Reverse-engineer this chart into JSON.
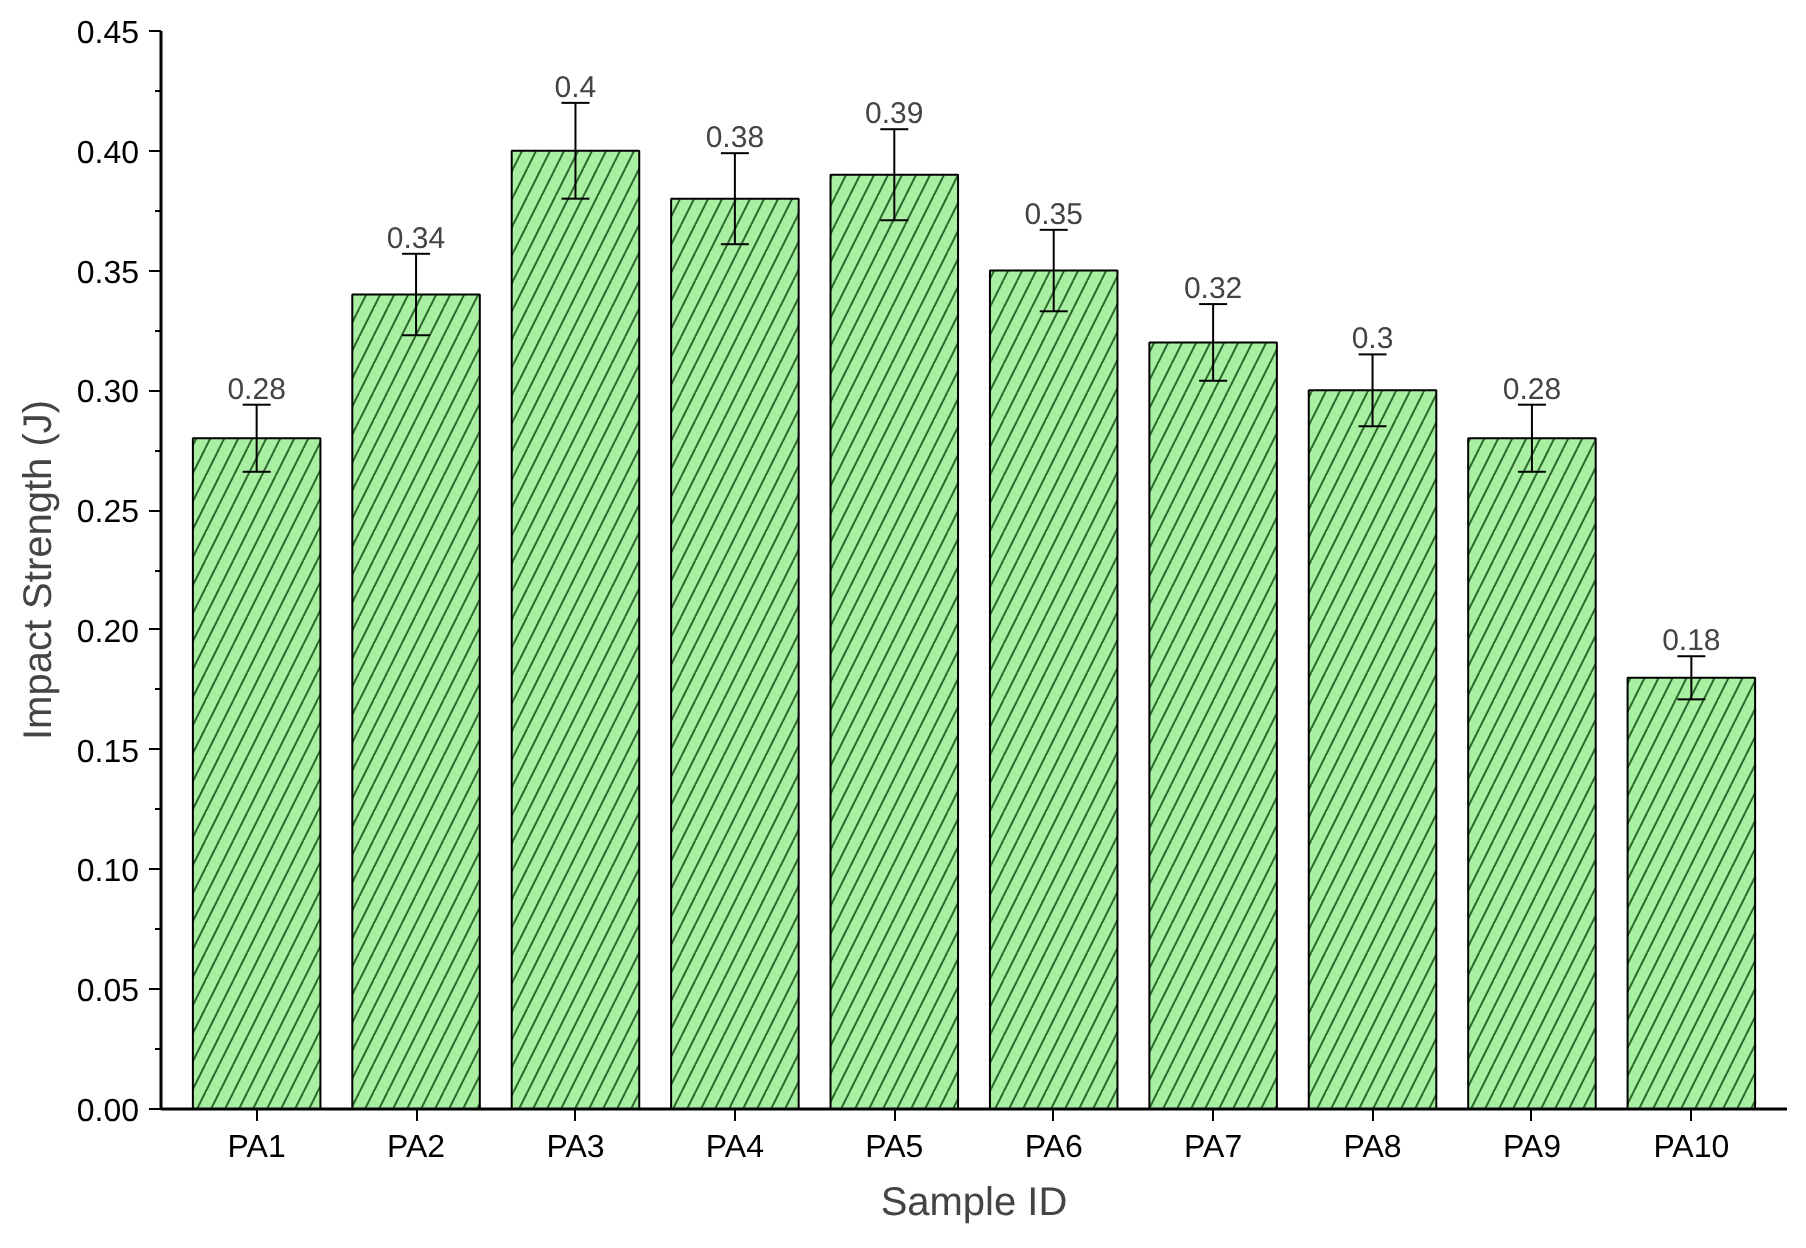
{
  "chart_data": {
    "type": "bar",
    "xlabel": "Sample ID",
    "ylabel": "Impact Strength (J)",
    "categories": [
      "PA1",
      "PA2",
      "PA3",
      "PA4",
      "PA5",
      "PA6",
      "PA7",
      "PA8",
      "PA9",
      "PA10"
    ],
    "values": [
      0.28,
      0.34,
      0.4,
      0.38,
      0.39,
      0.35,
      0.32,
      0.3,
      0.28,
      0.18
    ],
    "errors": [
      0.014,
      0.017,
      0.02,
      0.019,
      0.019,
      0.017,
      0.016,
      0.015,
      0.014,
      0.009
    ],
    "color": "#a9efa2",
    "data_labels": true,
    "grid": false,
    "ylim": [
      0,
      0.45
    ],
    "yticks": [
      {
        "value": 0,
        "label": "0.00"
      },
      {
        "value": 0.05,
        "label": "0.05"
      },
      {
        "value": 0.1,
        "label": "0.10"
      },
      {
        "value": 0.15,
        "label": "0.15"
      },
      {
        "value": 0.2,
        "label": "0.20"
      },
      {
        "value": 0.25,
        "label": "0.25"
      },
      {
        "value": 0.3,
        "label": "0.30"
      },
      {
        "value": 0.35,
        "label": "0.35"
      },
      {
        "value": 0.4,
        "label": "0.40"
      },
      {
        "value": 0.45,
        "label": "0.45"
      }
    ]
  }
}
